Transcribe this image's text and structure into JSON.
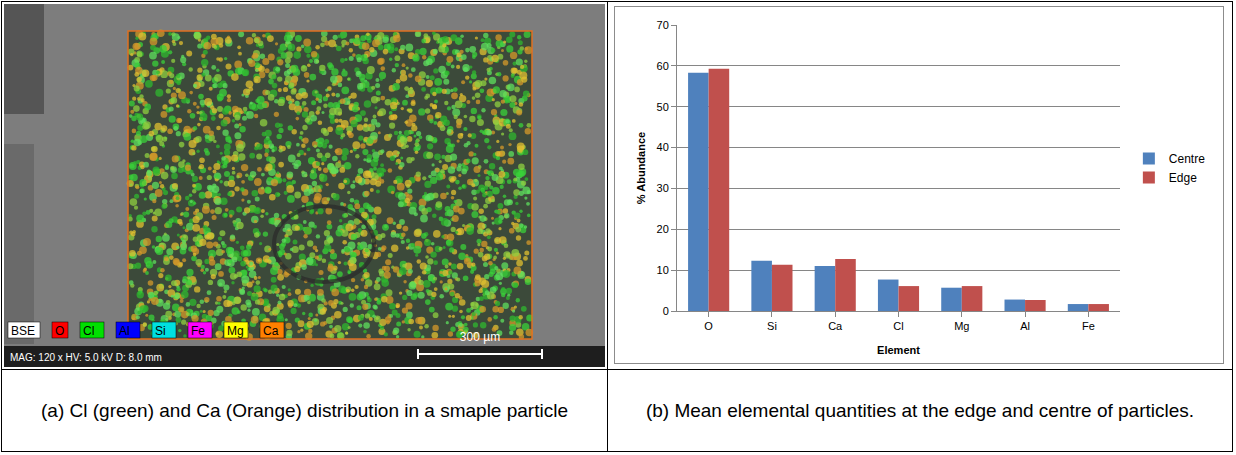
{
  "image_panel": {
    "channels": [
      {
        "label": "BSE",
        "color": "#ffffff"
      },
      {
        "label": "O",
        "color": "#ff0000"
      },
      {
        "label": "Cl",
        "color": "#00e000"
      },
      {
        "label": "Al",
        "color": "#0000ff"
      },
      {
        "label": "Si",
        "color": "#00e0e0"
      },
      {
        "label": "Fe",
        "color": "#ff00ff"
      },
      {
        "label": "Mg",
        "color": "#ffff00"
      },
      {
        "label": "Ca",
        "color": "#ff8000"
      }
    ],
    "info": "MAG: 120 x   HV: 5.0 kV   D: 8.0 mm",
    "scale_bar": "300 µm"
  },
  "captions": [
    "(a) Cl (green) and Ca (Orange) distribution in a smaple particle",
    "(b) Mean elemental quantities at the edge and centre of particles."
  ],
  "chart_data": {
    "type": "bar",
    "x_label": "Element",
    "y_label": "% Abundance",
    "categories": [
      "O",
      "Si",
      "Ca",
      "Cl",
      "Mg",
      "Al",
      "Fe"
    ],
    "series": [
      {
        "name": "Centre",
        "color": "#4f81bd",
        "values": [
          58.3,
          12.3,
          11.0,
          7.7,
          5.7,
          2.8,
          1.7
        ]
      },
      {
        "name": "Edge",
        "color": "#c0504d",
        "values": [
          59.3,
          11.3,
          12.7,
          6.1,
          6.1,
          2.7,
          1.7
        ]
      }
    ],
    "ylim": [
      0,
      70
    ],
    "yticks": [
      0,
      10,
      20,
      30,
      40,
      50,
      60,
      70
    ],
    "grid": true,
    "legend": "right"
  }
}
